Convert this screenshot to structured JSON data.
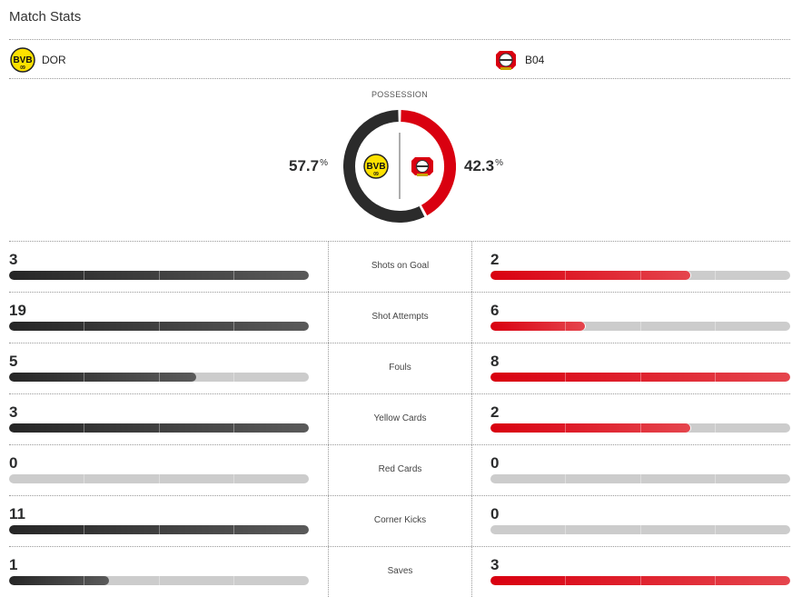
{
  "title": "Match Stats",
  "home": {
    "abbr": "DOR",
    "logo": "bvb-crest-icon",
    "color": "#2b2b2b"
  },
  "away": {
    "abbr": "B04",
    "logo": "leverkusen-crest-icon",
    "color": "#d90010"
  },
  "possession": {
    "label": "POSSESSION",
    "home": 57.7,
    "away": 42.3,
    "home_text": "57.7",
    "away_text": "42.3",
    "unit": "%"
  },
  "stats": [
    {
      "label": "Shots on Goal",
      "home": 3,
      "away": 2
    },
    {
      "label": "Shot Attempts",
      "home": 19,
      "away": 6
    },
    {
      "label": "Fouls",
      "home": 5,
      "away": 8
    },
    {
      "label": "Yellow Cards",
      "home": 3,
      "away": 2
    },
    {
      "label": "Red Cards",
      "home": 0,
      "away": 0
    },
    {
      "label": "Corner Kicks",
      "home": 11,
      "away": 0
    },
    {
      "label": "Saves",
      "home": 1,
      "away": 3
    }
  ]
}
